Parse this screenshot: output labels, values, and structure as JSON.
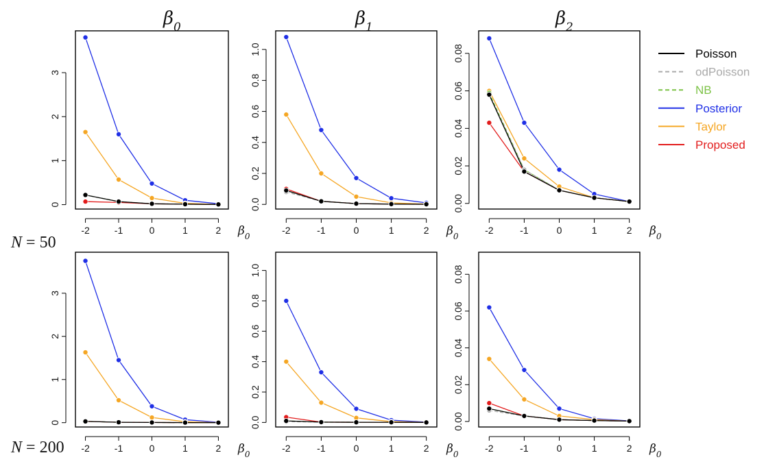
{
  "colors": {
    "Poisson": "#000000",
    "odPoisson": "#aaaaaa",
    "NB": "#7cc246",
    "Posterior": "#1f2fe6",
    "Taylor": "#f5a623",
    "Proposed": "#e21c1c"
  },
  "legend": [
    {
      "name": "Poisson",
      "dash": false
    },
    {
      "name": "odPoisson",
      "dash": true
    },
    {
      "name": "NB",
      "dash": true
    },
    {
      "name": "Posterior",
      "dash": false
    },
    {
      "name": "Taylor",
      "dash": false
    },
    {
      "name": "Proposed",
      "dash": false
    }
  ],
  "column_titles": [
    {
      "sym": "β",
      "sub": "0"
    },
    {
      "sym": "β",
      "sub": "1"
    },
    {
      "sym": "β",
      "sub": "2"
    }
  ],
  "x_axis_symbol": {
    "sym": "β",
    "sub": "0"
  },
  "row_labels": [
    {
      "lhs": "N",
      "eq": " = ",
      "val": "50"
    },
    {
      "lhs": "N",
      "eq": " = ",
      "val": "200"
    }
  ],
  "chart_data": [
    {
      "type": "line",
      "panel": "N=50, beta0",
      "x": [
        -2,
        -1,
        0,
        1,
        2
      ],
      "xticks": [
        "-2",
        "-1",
        "0",
        "1",
        "2"
      ],
      "xlim": [
        -2.3,
        2.3
      ],
      "ylim": [
        -0.1,
        3.95
      ],
      "yticks": [
        0,
        1,
        2,
        3
      ],
      "ytick_labels": [
        "0",
        "1",
        "2",
        "3"
      ],
      "series": [
        {
          "name": "Poisson",
          "values": [
            0.22,
            0.07,
            0.02,
            0.01,
            0.005
          ]
        },
        {
          "name": "odPoisson",
          "values": [
            0.22,
            0.07,
            0.02,
            0.01,
            0.005
          ]
        },
        {
          "name": "NB",
          "values": [
            0.22,
            0.07,
            0.02,
            0.01,
            0.005
          ]
        },
        {
          "name": "Posterior",
          "values": [
            3.8,
            1.6,
            0.48,
            0.1,
            0.02
          ]
        },
        {
          "name": "Taylor",
          "values": [
            1.65,
            0.57,
            0.15,
            0.03,
            0.005
          ]
        },
        {
          "name": "Proposed",
          "values": [
            0.07,
            0.05,
            0.02,
            0.01,
            0.005
          ]
        }
      ]
    },
    {
      "type": "line",
      "panel": "N=50, beta1",
      "x": [
        -2,
        -1,
        0,
        1,
        2
      ],
      "xticks": [
        "-2",
        "-1",
        "0",
        "1",
        "2"
      ],
      "xlim": [
        -2.3,
        2.3
      ],
      "ylim": [
        -0.03,
        1.12
      ],
      "yticks": [
        0,
        0.2,
        0.4,
        0.6,
        0.8,
        1.0
      ],
      "ytick_labels": [
        "0.0",
        "0.2",
        "0.4",
        "0.6",
        "0.8",
        "1.0"
      ],
      "series": [
        {
          "name": "Poisson",
          "values": [
            0.09,
            0.02,
            0.005,
            0.002,
            0.001
          ]
        },
        {
          "name": "odPoisson",
          "values": [
            0.08,
            0.02,
            0.005,
            0.002,
            0.001
          ]
        },
        {
          "name": "NB",
          "values": [
            0.09,
            0.02,
            0.005,
            0.002,
            0.001
          ]
        },
        {
          "name": "Posterior",
          "values": [
            1.08,
            0.48,
            0.17,
            0.04,
            0.01
          ]
        },
        {
          "name": "Taylor",
          "values": [
            0.58,
            0.2,
            0.05,
            0.01,
            0.002
          ]
        },
        {
          "name": "Proposed",
          "values": [
            0.1,
            0.02,
            0.005,
            0.002,
            0.001
          ]
        }
      ]
    },
    {
      "type": "line",
      "panel": "N=50, beta2",
      "x": [
        -2,
        -1,
        0,
        1,
        2
      ],
      "xticks": [
        "-2",
        "-1",
        "0",
        "1",
        "2"
      ],
      "xlim": [
        -2.3,
        2.3
      ],
      "ylim": [
        -0.003,
        0.092
      ],
      "yticks": [
        0,
        0.02,
        0.04,
        0.06,
        0.08
      ],
      "ytick_labels": [
        "0.00",
        "0.02",
        "0.04",
        "0.06",
        "0.08"
      ],
      "series": [
        {
          "name": "Poisson",
          "values": [
            0.058,
            0.017,
            0.007,
            0.003,
            0.001
          ]
        },
        {
          "name": "odPoisson",
          "values": [
            0.058,
            0.018,
            0.007,
            0.003,
            0.001
          ]
        },
        {
          "name": "NB",
          "values": [
            0.059,
            0.018,
            0.007,
            0.003,
            0.001
          ]
        },
        {
          "name": "Posterior",
          "values": [
            0.088,
            0.043,
            0.018,
            0.005,
            0.001
          ]
        },
        {
          "name": "Taylor",
          "values": [
            0.06,
            0.024,
            0.009,
            0.003,
            0.001
          ]
        },
        {
          "name": "Proposed",
          "values": [
            0.043,
            0.017,
            0.007,
            0.003,
            0.001
          ]
        }
      ]
    },
    {
      "type": "line",
      "panel": "N=200, beta0",
      "x": [
        -2,
        -1,
        0,
        1,
        2
      ],
      "xticks": [
        "-2",
        "-1",
        "0",
        "1",
        "2"
      ],
      "xlim": [
        -2.3,
        2.3
      ],
      "ylim": [
        -0.1,
        3.95
      ],
      "yticks": [
        0,
        1,
        2,
        3
      ],
      "ytick_labels": [
        "0",
        "1",
        "2",
        "3"
      ],
      "series": [
        {
          "name": "Poisson",
          "values": [
            0.03,
            0.01,
            0.005,
            0.002,
            0.001
          ]
        },
        {
          "name": "odPoisson",
          "values": [
            0.03,
            0.01,
            0.005,
            0.002,
            0.001
          ]
        },
        {
          "name": "NB",
          "values": [
            0.03,
            0.01,
            0.005,
            0.002,
            0.001
          ]
        },
        {
          "name": "Posterior",
          "values": [
            3.75,
            1.45,
            0.38,
            0.07,
            0.01
          ]
        },
        {
          "name": "Taylor",
          "values": [
            1.63,
            0.52,
            0.12,
            0.02,
            0.003
          ]
        },
        {
          "name": "Proposed",
          "values": [
            0.03,
            0.01,
            0.005,
            0.002,
            0.001
          ]
        }
      ]
    },
    {
      "type": "line",
      "panel": "N=200, beta1",
      "x": [
        -2,
        -1,
        0,
        1,
        2
      ],
      "xticks": [
        "-2",
        "-1",
        "0",
        "1",
        "2"
      ],
      "xlim": [
        -2.3,
        2.3
      ],
      "ylim": [
        -0.03,
        1.12
      ],
      "yticks": [
        0,
        0.2,
        0.4,
        0.6,
        0.8,
        1.0
      ],
      "ytick_labels": [
        "0.0",
        "0.2",
        "0.4",
        "0.6",
        "0.8",
        "1.0"
      ],
      "series": [
        {
          "name": "Poisson",
          "values": [
            0.01,
            0.002,
            0.001,
            0.001,
            0.0
          ]
        },
        {
          "name": "odPoisson",
          "values": [
            0.005,
            0.002,
            0.001,
            0.001,
            0.0
          ]
        },
        {
          "name": "NB",
          "values": [
            0.01,
            0.002,
            0.001,
            0.001,
            0.0
          ]
        },
        {
          "name": "Posterior",
          "values": [
            0.8,
            0.33,
            0.09,
            0.015,
            0.002
          ]
        },
        {
          "name": "Taylor",
          "values": [
            0.4,
            0.13,
            0.03,
            0.005,
            0.001
          ]
        },
        {
          "name": "Proposed",
          "values": [
            0.035,
            0.002,
            0.001,
            0.001,
            0.0
          ]
        }
      ]
    },
    {
      "type": "line",
      "panel": "N=200, beta2",
      "x": [
        -2,
        -1,
        0,
        1,
        2
      ],
      "xticks": [
        "-2",
        "-1",
        "0",
        "1",
        "2"
      ],
      "xlim": [
        -2.3,
        2.3
      ],
      "ylim": [
        -0.003,
        0.092
      ],
      "yticks": [
        0,
        0.02,
        0.04,
        0.06,
        0.08
      ],
      "ytick_labels": [
        "0.00",
        "0.02",
        "0.04",
        "0.06",
        "0.08"
      ],
      "series": [
        {
          "name": "Poisson",
          "values": [
            0.007,
            0.003,
            0.001,
            0.0005,
            0.0002
          ]
        },
        {
          "name": "odPoisson",
          "values": [
            0.006,
            0.003,
            0.001,
            0.0005,
            0.0002
          ]
        },
        {
          "name": "NB",
          "values": [
            0.007,
            0.003,
            0.001,
            0.0005,
            0.0002
          ]
        },
        {
          "name": "Posterior",
          "values": [
            0.062,
            0.028,
            0.007,
            0.0015,
            0.0003
          ]
        },
        {
          "name": "Taylor",
          "values": [
            0.034,
            0.012,
            0.003,
            0.001,
            0.0002
          ]
        },
        {
          "name": "Proposed",
          "values": [
            0.01,
            0.003,
            0.001,
            0.0005,
            0.0002
          ]
        }
      ]
    }
  ]
}
